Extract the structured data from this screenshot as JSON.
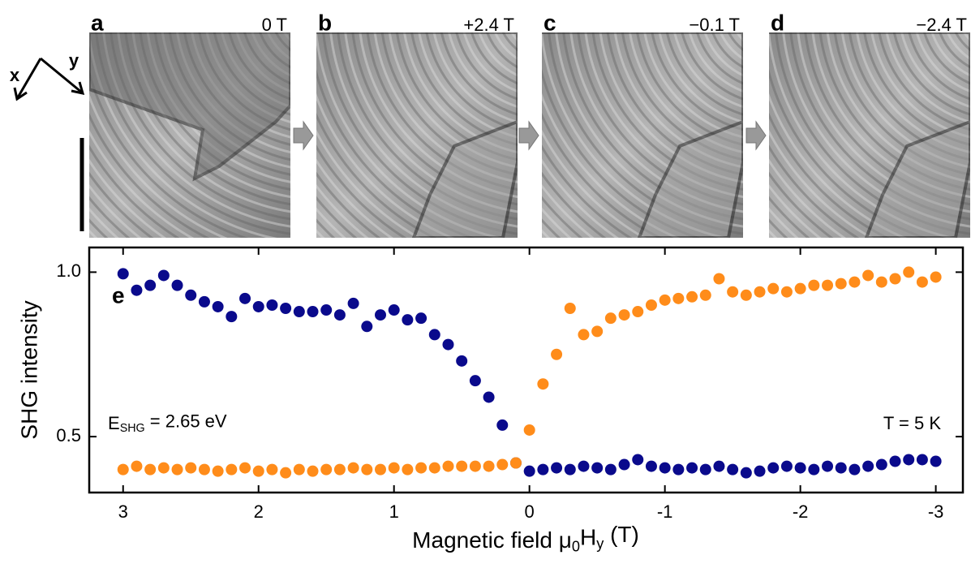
{
  "chart_data": {
    "type": "scatter",
    "panels": [
      {
        "letter": "a",
        "field": "0 T"
      },
      {
        "letter": "b",
        "field": "+2.4 T"
      },
      {
        "letter": "c",
        "field": "−0.1 T"
      },
      {
        "letter": "d",
        "field": "−2.4 T"
      }
    ],
    "axis_labels": [
      "x",
      "y"
    ],
    "panel_label": "e",
    "ylabel": "SHG intensity",
    "xlabel": [
      {
        "text": "Magnetic field μ",
        "sub": false
      },
      {
        "text": "0",
        "sub": true
      },
      {
        "text": "H",
        "sub": false
      },
      {
        "text": "y",
        "sub": true
      },
      {
        "text": " (T)",
        "sub": false
      }
    ],
    "annotations": [
      [
        {
          "text": "E",
          "sub": false
        },
        {
          "text": "SHG",
          "sub": true
        },
        {
          "text": " = 2.65 eV",
          "sub": false
        }
      ],
      [
        {
          "text": "T = 5 K",
          "sub": false
        }
      ]
    ],
    "xlim": [
      3.25,
      -3.2
    ],
    "ylim": [
      0.33,
      1.075
    ],
    "xticks": [
      3,
      2,
      1,
      0,
      -1,
      -2,
      -3
    ],
    "yticks": [
      0.5,
      {
        "value": 1,
        "label": "1.0"
      }
    ],
    "series": [
      {
        "color": "#0a0a8c",
        "x": [
          3.0,
          2.9,
          2.8,
          2.7,
          2.6,
          2.5,
          2.4,
          2.3,
          2.2,
          2.1,
          2.0,
          1.9,
          1.8,
          1.7,
          1.6,
          1.5,
          1.4,
          1.3,
          1.2,
          1.1,
          1.0,
          0.9,
          0.8,
          0.7,
          0.6,
          0.5,
          0.4,
          0.3,
          0.2,
          0.1,
          0.0,
          -0.1,
          -0.2,
          -0.3,
          -0.4,
          -0.5,
          -0.6,
          -0.7,
          -0.8,
          -0.9,
          -1.0,
          -1.1,
          -1.2,
          -1.3,
          -1.4,
          -1.5,
          -1.6,
          -1.7,
          -1.8,
          -1.9,
          -2.0,
          -2.1,
          -2.2,
          -2.3,
          -2.4,
          -2.5,
          -2.6,
          -2.7,
          -2.8,
          -2.9,
          -3.0
        ],
        "values": [
          0.995,
          0.945,
          0.96,
          0.99,
          0.96,
          0.93,
          0.91,
          0.895,
          0.865,
          0.92,
          0.895,
          0.9,
          0.89,
          0.88,
          0.88,
          0.885,
          0.87,
          0.905,
          0.835,
          0.87,
          0.885,
          0.855,
          0.86,
          0.81,
          0.78,
          0.73,
          0.67,
          0.62,
          0.535,
          0.42,
          0.395,
          0.4,
          0.405,
          0.4,
          0.41,
          0.405,
          0.4,
          0.415,
          0.43,
          0.41,
          0.405,
          0.4,
          0.405,
          0.4,
          0.41,
          0.4,
          0.39,
          0.395,
          0.405,
          0.41,
          0.405,
          0.4,
          0.41,
          0.405,
          0.4,
          0.41,
          0.415,
          0.425,
          0.43,
          0.43,
          0.425
        ]
      },
      {
        "color": "#ff8c1a",
        "x": [
          3.0,
          2.9,
          2.8,
          2.7,
          2.6,
          2.5,
          2.4,
          2.3,
          2.2,
          2.1,
          2.0,
          1.9,
          1.8,
          1.7,
          1.6,
          1.5,
          1.4,
          1.3,
          1.2,
          1.1,
          1.0,
          0.9,
          0.8,
          0.7,
          0.6,
          0.5,
          0.4,
          0.3,
          0.2,
          0.1,
          0.0,
          -0.1,
          -0.2,
          -0.3,
          -0.4,
          -0.5,
          -0.6,
          -0.7,
          -0.8,
          -0.9,
          -1.0,
          -1.1,
          -1.2,
          -1.3,
          -1.4,
          -1.5,
          -1.6,
          -1.7,
          -1.8,
          -1.9,
          -2.0,
          -2.1,
          -2.2,
          -2.3,
          -2.4,
          -2.5,
          -2.6,
          -2.7,
          -2.8,
          -2.9,
          -3.0
        ],
        "values": [
          0.4,
          0.41,
          0.4,
          0.405,
          0.4,
          0.405,
          0.4,
          0.395,
          0.4,
          0.405,
          0.395,
          0.4,
          0.39,
          0.4,
          0.395,
          0.4,
          0.4,
          0.405,
          0.4,
          0.4,
          0.405,
          0.4,
          0.405,
          0.405,
          0.41,
          0.41,
          0.41,
          0.41,
          0.415,
          0.42,
          0.52,
          0.66,
          0.75,
          0.89,
          0.81,
          0.82,
          0.86,
          0.87,
          0.88,
          0.9,
          0.915,
          0.92,
          0.925,
          0.93,
          0.98,
          0.94,
          0.93,
          0.94,
          0.95,
          0.94,
          0.95,
          0.96,
          0.96,
          0.965,
          0.97,
          0.99,
          0.97,
          0.98,
          1.0,
          0.97,
          0.985
        ]
      }
    ]
  }
}
